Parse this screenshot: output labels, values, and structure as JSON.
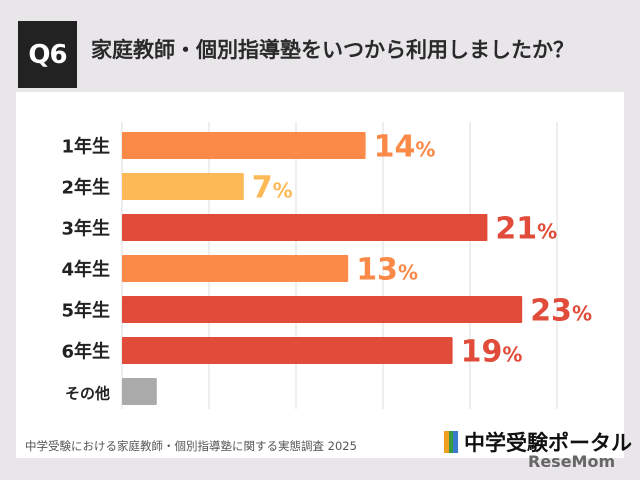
{
  "header": {
    "badge": "Q6",
    "title": "家庭教師・個別指導塾をいつから利用しましたか？"
  },
  "footer": {
    "source": "中学受験における家庭教師・個別指導塾に関する実態調査 2025",
    "logo": "中学受験ポータル",
    "watermark": "ReseMom"
  },
  "chart_data": {
    "type": "bar",
    "orientation": "horizontal",
    "categories": [
      "1年生",
      "2年生",
      "3年生",
      "4年生",
      "5年生",
      "6年生",
      "その他"
    ],
    "values": [
      14,
      7,
      21,
      13,
      23,
      19,
      2
    ],
    "labels": [
      "14",
      "7",
      "21",
      "13",
      "23",
      "19",
      ""
    ],
    "unit": "%",
    "colors": [
      "#fb8a48",
      "#fdb955",
      "#e04b3a",
      "#fb8a48",
      "#e04b3a",
      "#e04b3a",
      "#aaaaaa"
    ],
    "xlim": [
      0,
      30
    ],
    "grid": true
  }
}
